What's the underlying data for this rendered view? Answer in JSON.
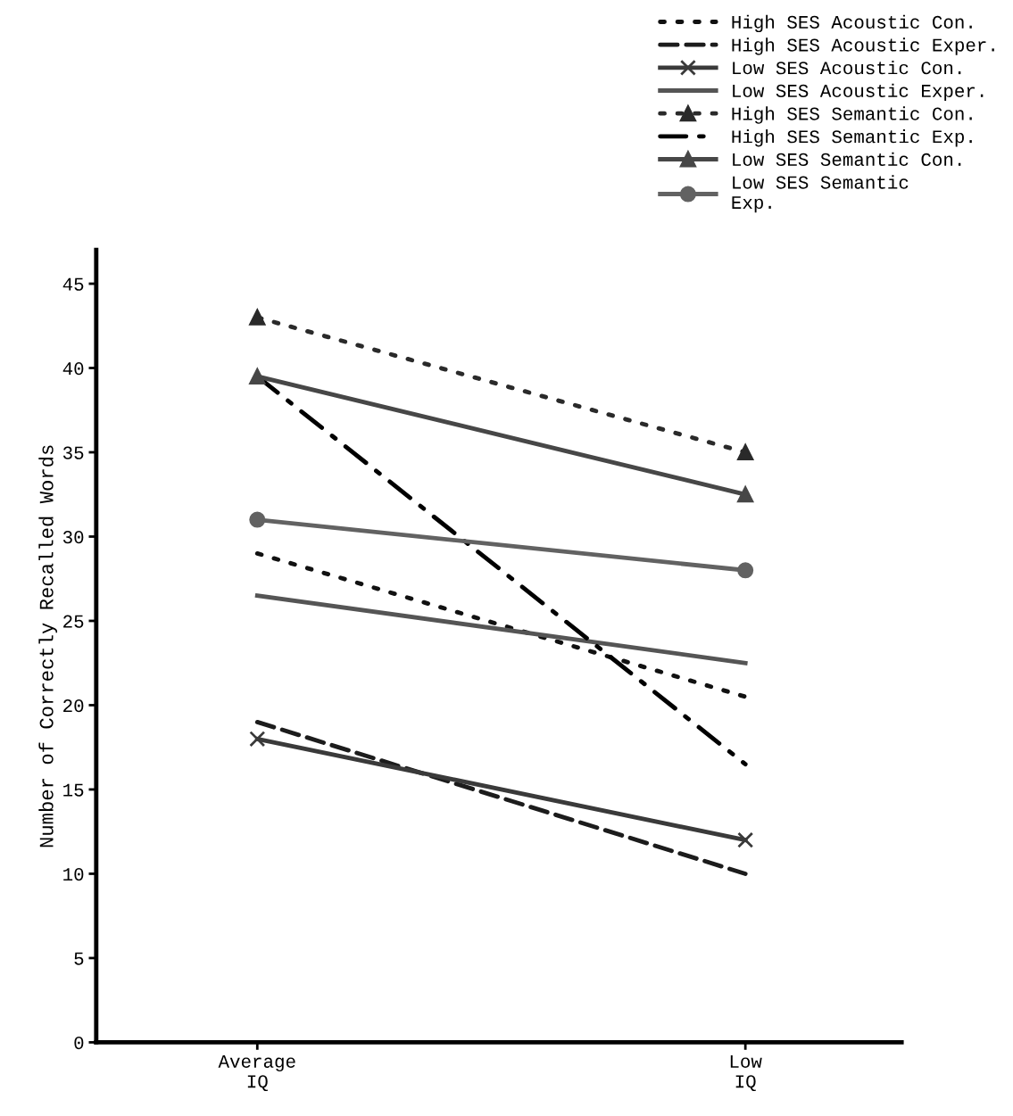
{
  "chart_data": {
    "type": "line",
    "ylabel": "Number of Correctly Recalled Words",
    "categories": [
      "Average\nIQ",
      "Low\nIQ"
    ],
    "ylim": [
      0,
      47
    ],
    "yticks": [
      0,
      5,
      10,
      15,
      20,
      25,
      30,
      35,
      40,
      45
    ],
    "grid": false,
    "legend": "top right",
    "series": [
      {
        "name": "High SES Acoustic Con.",
        "color": "#111111",
        "values": [
          29.0,
          20.5
        ],
        "line_style": "dotted",
        "marker": "none"
      },
      {
        "name": "High SES Acoustic Exper.",
        "color": "#1c1c1c",
        "values": [
          19.0,
          10.0
        ],
        "line_style": "dashed",
        "marker": "none"
      },
      {
        "name": "Low SES Acoustic Con.",
        "color": "#3a3a3a",
        "values": [
          18.0,
          12.0
        ],
        "line_style": "solid",
        "marker": "cross"
      },
      {
        "name": "Low SES Acoustic Exper.",
        "color": "#555555",
        "values": [
          26.5,
          22.5
        ],
        "line_style": "solid",
        "marker": "none"
      },
      {
        "name": "High SES Semantic Con.",
        "color": "#2a2a2a",
        "values": [
          43.0,
          35.0
        ],
        "line_style": "dotted",
        "marker": "triangle"
      },
      {
        "name": "High SES Semantic Exp.",
        "color": "#000000",
        "values": [
          39.5,
          16.5
        ],
        "line_style": "dashdot",
        "marker": "none"
      },
      {
        "name": "Low SES Semantic Con.",
        "color": "#474747",
        "values": [
          39.5,
          32.5
        ],
        "line_style": "solid",
        "marker": "triangle"
      },
      {
        "name": "Low SES Semantic\nExp.",
        "color": "#626262",
        "values": [
          31.0,
          28.0
        ],
        "line_style": "solid",
        "marker": "circle"
      }
    ]
  }
}
